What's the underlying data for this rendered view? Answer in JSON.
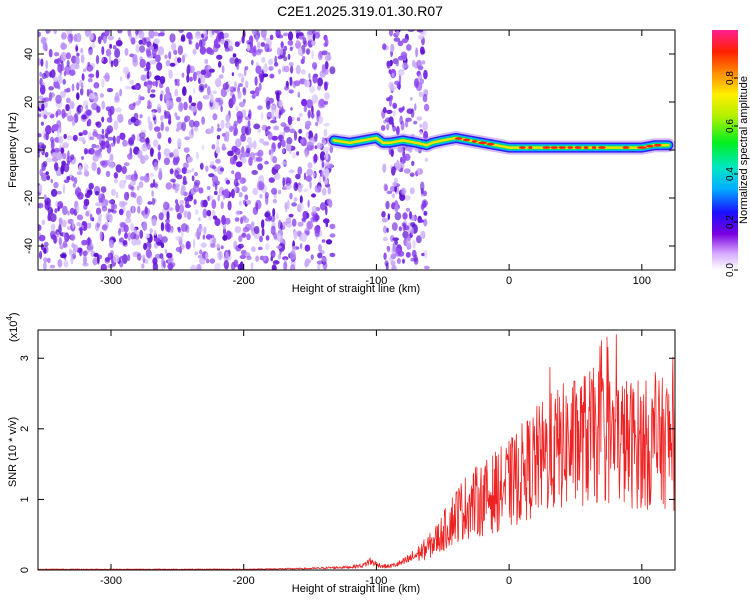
{
  "chart_data": [
    {
      "type": "heatmap",
      "title": "C2E1.2025.319.01.30.R07",
      "xlabel": "Height of straight line (km)",
      "ylabel": "Frequency (Hz)",
      "xlim": [
        -355,
        125
      ],
      "ylim": [
        -50,
        50
      ],
      "xticks": [
        -300,
        -200,
        -100,
        0,
        100
      ],
      "yticks": [
        -40,
        -20,
        0,
        20,
        40
      ],
      "colorbar": {
        "label": "Normalized spectral amplitude",
        "range": [
          0,
          1
        ],
        "ticks": [
          0.0,
          0.2,
          0.4,
          0.6,
          0.8
        ]
      },
      "regions": [
        {
          "name": "noise",
          "x": [
            -355,
            -133
          ],
          "level": 0.1
        },
        {
          "name": "gap",
          "x": [
            -133,
            -95
          ],
          "level": 0
        },
        {
          "name": "noise",
          "x": [
            -95,
            -62
          ],
          "level": 0.1
        },
        {
          "name": "gap",
          "x": [
            -62,
            125
          ],
          "level": 0
        }
      ],
      "ridge": {
        "x": [
          -132,
          -120,
          -110,
          -100,
          -95,
          -90,
          -80,
          -70,
          -62,
          -58,
          -50,
          -40,
          -30,
          -20,
          -10,
          0,
          10,
          20,
          30,
          40,
          50,
          60,
          70,
          80,
          90,
          100,
          110,
          120
        ],
        "freq": [
          4,
          3,
          4,
          5,
          3,
          3,
          4,
          3,
          2,
          3,
          4,
          5,
          4,
          3,
          2,
          1,
          1,
          1,
          1,
          1,
          1,
          1,
          1,
          1,
          1,
          1,
          2,
          2
        ]
      }
    },
    {
      "type": "line",
      "xlabel": "Height of straight line (km)",
      "ylabel": "SNR (10 * v/v)",
      "scale_label": "(x10",
      "scale_exp": "4",
      "scale_close": ")",
      "xlim": [
        -355,
        125
      ],
      "ylim": [
        0,
        3.4
      ],
      "xticks": [
        -300,
        -200,
        -100,
        0,
        100
      ],
      "yticks": [
        0,
        1,
        2,
        3
      ],
      "series": [
        {
          "name": "SNR",
          "color": "#ee2222",
          "x": [
            -355,
            -200,
            -150,
            -120,
            -110,
            -105,
            -100,
            -95,
            -90,
            -80,
            -70,
            -60,
            -50,
            -40,
            -30,
            -20,
            -10,
            0,
            10,
            20,
            30,
            40,
            50,
            60,
            70,
            80,
            90,
            100,
            110,
            120,
            125
          ],
          "y": [
            0.01,
            0.01,
            0.02,
            0.04,
            0.06,
            0.12,
            0.08,
            0.05,
            0.05,
            0.1,
            0.2,
            0.32,
            0.5,
            0.75,
            0.88,
            0.95,
            1.05,
            1.15,
            1.3,
            1.45,
            1.55,
            1.65,
            1.72,
            1.78,
            1.8,
            1.75,
            1.7,
            1.7,
            1.65,
            1.75,
            1.6
          ]
        }
      ]
    }
  ]
}
